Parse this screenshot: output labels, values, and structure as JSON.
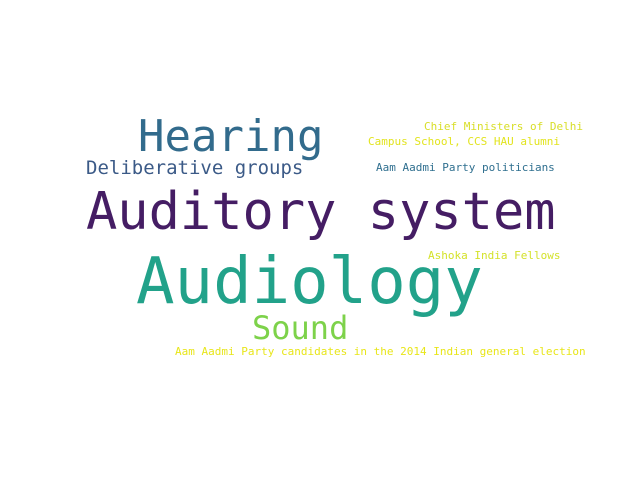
{
  "words": {
    "audiology": {
      "text": "Audiology",
      "color": "#22a28a"
    },
    "auditory_system": {
      "text": "Auditory system",
      "color": "#451d64"
    },
    "hearing": {
      "text": "Hearing",
      "color": "#326b8c"
    },
    "sound": {
      "text": "Sound",
      "color": "#7dd24a"
    },
    "deliberative": {
      "text": "Deliberative groups",
      "color": "#3b5a87"
    },
    "chief_ministers": {
      "text": "Chief Ministers of Delhi",
      "color": "#d8de28"
    },
    "campus_school": {
      "text": "Campus School, CCS HAU alumni",
      "color": "#e2e41f"
    },
    "aap_politicians": {
      "text": "Aam Aadmi Party politicians",
      "color": "#2f6f8f"
    },
    "ashoka": {
      "text": "Ashoka India Fellows",
      "color": "#d4e22a"
    },
    "aap_candidates": {
      "text": "Aam Aadmi Party candidates in the 2014 Indian general election",
      "color": "#e8e61a"
    }
  }
}
